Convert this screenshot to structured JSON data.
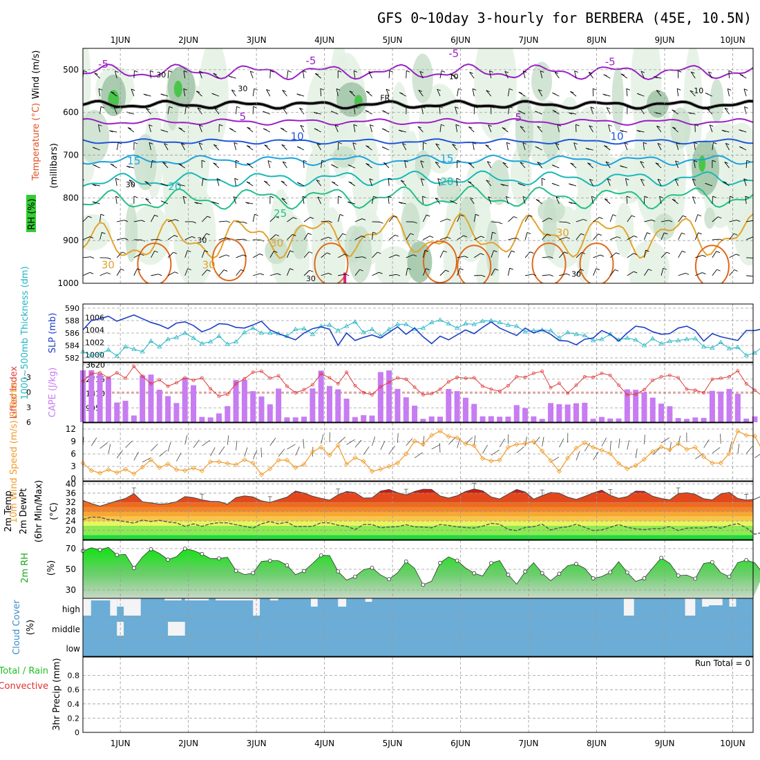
{
  "title": "GFS 0~10day 3-hourly for BERBERA (45E, 10.5N)",
  "colors": {
    "purple": "#9a1fc4",
    "black": "#000000",
    "blue": "#1e55d8",
    "lightblue": "#19a3e0",
    "teal": "#18b8b8",
    "green_line": "#22bf88",
    "orange": "#e2a32a",
    "dark_orange": "#e0681b",
    "slp": "#1c3fc4",
    "thickness": "#22b5c4",
    "li": "#e03a3a",
    "cape": "#c77cf2",
    "wind": "#f09a28",
    "rh2m": "#1bd61b",
    "cloud": "#6badd6"
  },
  "chart_data": {
    "type": "meteogram",
    "location": "BERBERA (45E, 10.5N)",
    "x_axis": {
      "ticks": [
        "1JUN",
        "2JUN",
        "3JUN",
        "4JUN",
        "5JUN",
        "6JUN",
        "7JUN",
        "8JUN",
        "9JUN",
        "10JUN"
      ],
      "day_range": [
        0.45,
        10.3
      ],
      "step_hours": 3
    },
    "panels": {
      "upper_air": {
        "ylabel": "(millibars)",
        "side_labels": [
          "Wind (m/s)",
          "Temperature (°C)",
          "RH (%)"
        ],
        "y_ticks": [
          "500",
          "600",
          "700",
          "800",
          "900",
          "1000"
        ],
        "ylim": [
          1000,
          450
        ],
        "rh_fill_levels": [
          30,
          50,
          70,
          90
        ],
        "freezing_label": "FR",
        "isotherm_labels": [
          "-5",
          "-5",
          "-5",
          "-5",
          "5",
          "5",
          "10",
          "10",
          "15",
          "15",
          "20",
          "20",
          "25",
          "30",
          "30",
          "30",
          "30"
        ],
        "rh_labels": [
          "30",
          "30",
          "30",
          "30",
          "30",
          "10",
          "10",
          "30"
        ],
        "isotherms": [
          {
            "temp": -5,
            "start": 505,
            "amp": 12
          },
          {
            "temp": 0,
            "start": 582,
            "amp": 6
          },
          {
            "temp": 5,
            "start": 622,
            "amp": 5
          },
          {
            "temp": 10,
            "start": 668,
            "amp": 4
          },
          {
            "temp": 15,
            "start": 712,
            "amp": 8
          },
          {
            "temp": 20,
            "start": 762,
            "amp": 12
          },
          {
            "temp": 25,
            "start": 810,
            "amp": 18
          },
          {
            "temp": 30,
            "start": 910,
            "amp": 35
          }
        ]
      },
      "slp_thickness": {
        "left_ylabel": "1000~500mb Thickness (dm)",
        "right_ylabel": "SLP (mb)",
        "thickness_ticks": [
          "582",
          "584",
          "586",
          "588",
          "590"
        ],
        "slp_ticks": [
          "1000",
          "1002",
          "1004",
          "1006"
        ],
        "thickness_range": [
          582,
          590
        ],
        "slp_range": [
          999.5,
          1007.5
        ],
        "slp": [
          1004.0,
          1005.5,
          1005.8,
          1006.2,
          1005.4,
          1005.9,
          1006.4,
          1005.8,
          1005.2,
          1004.8,
          1004.2,
          1005.1,
          1005.3,
          1004.7,
          1003.7,
          1004.2,
          1005.0,
          1004.9,
          1004.4,
          1004.3,
          1004.8,
          1005.4,
          1004.0,
          1003.4,
          1002.9,
          1002.4,
          1003.5,
          1004.2,
          1004.5,
          1004.1,
          1001.5,
          1003.5,
          1002.3,
          1002.8,
          1003.2,
          1002.7,
          1003.6,
          1004.5,
          1003.3,
          1004.3,
          1002.9,
          1001.8,
          1003.0,
          1002.4,
          1003.2,
          1004.0,
          1003.4,
          1004.4,
          1005.3,
          1004.3,
          1003.7,
          1003.1,
          1004.3,
          1003.5,
          1004.0,
          1003.3,
          1002.3,
          1002.2,
          1001.6,
          1002.5,
          1002.7,
          1003.9,
          1003.3,
          1002.2,
          1003.5,
          1004.6,
          1004.4,
          1003.7,
          1003.3,
          1003.4,
          1004.3,
          1004.6,
          1003.9,
          1002.2,
          1003.4,
          1002.9,
          1002.6,
          1002.3,
          1003.9,
          1003.9,
          1004.2
        ],
        "thickness": [
          583.0,
          582.4,
          582.6,
          583.3,
          582.3,
          583.8,
          583.4,
          583.0,
          584.7,
          583.8,
          585.0,
          585.3,
          586.0,
          585.2,
          584.3,
          584.6,
          585.5,
          584.2,
          584.6,
          586.1,
          586.8,
          586.0,
          586.0,
          585.9,
          585.5,
          586.6,
          586.7,
          585.8,
          587.1,
          587.3,
          586.4,
          587.1,
          587.8,
          586.1,
          586.6,
          585.5,
          586.6,
          587.4,
          587.4,
          586.6,
          586.8,
          587.7,
          588.1,
          587.5,
          586.8,
          587.5,
          587.4,
          587.9,
          588.0,
          587.7,
          587.3,
          587.1,
          586.2,
          586.4,
          586.5,
          586.4,
          585.2,
          586.1,
          585.8,
          585.6,
          584.8,
          585.0,
          585.8,
          584.9,
          585.2,
          584.9,
          584.0,
          585.1,
          584.3,
          584.7,
          584.8,
          585.0,
          585.1,
          583.8,
          583.6,
          584.5,
          583.5,
          583.7,
          582.4,
          582.8,
          583.9
        ]
      },
      "cape_li": {
        "left_ylabel": "Lifted Index",
        "right_ylabel": "CAPE (J/kg)",
        "li_ticks": [
          "-3",
          "0",
          "3",
          "6"
        ],
        "cape_ticks": [
          "905",
          "1810",
          "2715",
          "3620"
        ],
        "li_range": [
          -5.5,
          6
        ],
        "cape_max": 3620,
        "cape": [
          3276,
          3276,
          3052,
          2819,
          1238,
          1347,
          420,
          2949,
          3003,
          2049,
          1642,
          1208,
          2815,
          2331,
          328,
          298,
          552,
          1012,
          2658,
          2665,
          1956,
          1622,
          1126,
          2120,
          300,
          300,
          345,
          2129,
          3255,
          2281,
          2074,
          1484,
          321,
          443,
          416,
          3162,
          3265,
          2101,
          1568,
          1040,
          210,
          359,
          346,
          2093,
          1958,
          1543,
          1152,
          365,
          374,
          342,
          349,
          1075,
          883,
          365,
          208,
          1205,
          1131,
          1113,
          1191,
          1225,
          216,
          328,
          229,
          230,
          2070,
          2044,
          1880,
          1549,
          1168,
          1004,
          261,
          208,
          295,
          267,
          1977,
          1932,
          2099,
          1791,
          223,
          363,
          227
        ],
        "lifted_index": [
          -2.2,
          -3.7,
          -3.9,
          -2.9,
          -3.9,
          -2.8,
          -5.2,
          -3.2,
          -1.7,
          -2.5,
          -1.2,
          -1.9,
          -2.9,
          -2.4,
          -2.9,
          -0.7,
          0.8,
          0.4,
          -1.7,
          -2.7,
          -4.0,
          -4.2,
          -2.8,
          -3.3,
          -1.2,
          0.1,
          -0.5,
          -1.5,
          -3.7,
          -2.9,
          -1.7,
          -4.0,
          -1.3,
          0.1,
          0.5,
          -1.1,
          -2.0,
          -2.9,
          -2.6,
          -1.0,
          0.5,
          0.3,
          -0.6,
          -2.1,
          -3.0,
          -2.8,
          -2.9,
          -1.2,
          -0.6,
          -0.2,
          -1.3,
          -3.1,
          -3.0,
          -3.8,
          -4.2,
          -0.9,
          -1.8,
          0.2,
          -1.4,
          -3.1,
          -3.0,
          -3.8,
          -3.4,
          -1.4,
          0.5,
          0.4,
          -0.5,
          -2.4,
          -3.1,
          -3.4,
          -2.9,
          -0.6,
          -0.4,
          0.1,
          -2.6,
          -2.8,
          -3.1,
          -4.3,
          -1.7,
          -0.4,
          0.9
        ]
      },
      "wind10m": {
        "ylabel": "10m Wind Speed (m/s) & Barbs",
        "y_ticks": [
          "0",
          "3",
          "6",
          "9",
          "12"
        ],
        "ylim": [
          0,
          13.5
        ],
        "speed": [
          3.8,
          2.0,
          1.4,
          2.2,
          1.5,
          2.3,
          1.2,
          2.8,
          4.6,
          2.7,
          3.6,
          2.2,
          2.0,
          2.6,
          1.9,
          4.1,
          4.1,
          3.7,
          3.4,
          4.6,
          3.8,
          1.0,
          2.4,
          4.5,
          4.5,
          2.7,
          3.5,
          6.5,
          7.6,
          5.7,
          8.1,
          3.5,
          5.1,
          4.2,
          1.8,
          2.3,
          3.0,
          3.8,
          6.0,
          9.1,
          8.3,
          10.5,
          11.5,
          10.2,
          9.9,
          8.4,
          8.0,
          4.9,
          4.3,
          4.5,
          7.6,
          8.3,
          8.5,
          9.0,
          6.7,
          4.4,
          1.8,
          5.0,
          7.4,
          8.7,
          7.6,
          6.9,
          6.1,
          3.7,
          2.4,
          3.2,
          4.7,
          6.6,
          7.7,
          7.0,
          8.5,
          7.1,
          7.6,
          5.3,
          3.8,
          3.8,
          6.1,
          11.5,
          10.5,
          10.3,
          6.4
        ]
      },
      "temp2m": {
        "ylabel": "2m Temp 2m DewPt (6hr Min/Max) (°C)",
        "y_ticks": [
          "20",
          "24",
          "28",
          "32",
          "36",
          "40"
        ],
        "ylim": [
          16,
          41
        ],
        "temperature": [
          32.9,
          31.5,
          30.4,
          31.5,
          32.7,
          33.7,
          35.8,
          32.3,
          31.8,
          31.3,
          31.5,
          32.3,
          34.5,
          34.1,
          33.1,
          32.5,
          32.4,
          31.2,
          34.1,
          34.8,
          34.4,
          32.7,
          32.0,
          33.2,
          34.3,
          36.9,
          36.1,
          34.7,
          33.8,
          33.0,
          35.3,
          36.7,
          36.3,
          33.9,
          34.0,
          36.9,
          37.6,
          36.2,
          35.2,
          36.7,
          37.7,
          37.6,
          34.8,
          33.9,
          34.9,
          36.7,
          37.8,
          37.0,
          34.4,
          33.5,
          35.6,
          37.6,
          36.5,
          33.4,
          34.9,
          36.3,
          36.0,
          34.3,
          33.3,
          34.6,
          36.1,
          37.3,
          35.1,
          33.8,
          34.5,
          36.9,
          36.8,
          34.7,
          33.7,
          33.1,
          35.8,
          36.2,
          35.5,
          33.6,
          33.1,
          35.7,
          36.4,
          33.7,
          33.0,
          33.4,
          35.1
        ],
        "dewpoint": [
          24.7,
          25.7,
          25.6,
          24.6,
          24.4,
          23.7,
          23.1,
          24.4,
          23.8,
          24.3,
          23.6,
          23.2,
          21.7,
          22.8,
          21.7,
          22.8,
          23.3,
          23.2,
          22.4,
          21.7,
          21.0,
          22.8,
          23.8,
          22.8,
          23.5,
          21.6,
          21.7,
          21.7,
          23.3,
          23.2,
          22.2,
          21.8,
          20.3,
          22.5,
          22.5,
          21.1,
          21.4,
          21.6,
          22.4,
          21.5,
          21.4,
          21.1,
          22.5,
          22.1,
          21.5,
          21.2,
          21.0,
          21.8,
          23.0,
          22.6,
          20.4,
          19.9,
          21.2,
          21.6,
          22.6,
          20.1,
          21.1,
          21.5,
          22.6,
          21.3,
          19.9,
          20.2,
          21.3,
          22.5,
          21.3,
          20.6,
          20.3,
          20.7,
          20.7,
          21.6,
          19.9,
          20.9,
          21.1,
          20.9,
          21.6,
          20.9,
          22.1,
          22.9,
          21.1,
          18.3,
          19.2
        ]
      },
      "rh2m": {
        "ylabel": "2m RH (%)",
        "y_ticks": [
          "30",
          "50",
          "70"
        ],
        "ylim": [
          22,
          78
        ],
        "values": [
          67.7,
          70.8,
          68.8,
          71.2,
          63.9,
          64.4,
          51.2,
          61.9,
          69.4,
          65.3,
          59.3,
          62.2,
          69.9,
          68.1,
          64.8,
          60.3,
          60.5,
          61.7,
          48.6,
          44.9,
          46.4,
          57.7,
          58.3,
          58.3,
          53.9,
          44.8,
          48.3,
          55.7,
          63.5,
          63.3,
          48.0,
          39.7,
          42.9,
          49.7,
          51.5,
          44.6,
          40.5,
          46.7,
          57.6,
          50.9,
          35.1,
          38.5,
          56.2,
          62.1,
          58.4,
          51.3,
          46.2,
          43.6,
          56.0,
          58.4,
          44.8,
          35.7,
          47.8,
          56.5,
          46.3,
          38.9,
          45.7,
          53.4,
          55.2,
          50.9,
          41.3,
          43.0,
          47.1,
          57.4,
          47.0,
          38.3,
          41.3,
          51.3,
          61.1,
          55.8,
          44.0,
          44.4,
          41.0,
          55.7,
          56.9,
          46.8,
          42.9,
          56.5,
          58.9,
          56.2,
          45.7
        ]
      },
      "cloud_cover": {
        "ylabel": "Cloud Cover (%)",
        "levels": [
          "high",
          "middle",
          "low"
        ],
        "high_clear_segments": [
          [
            0.45,
            0.57,
            25
          ],
          [
            0.57,
            0.85,
            3
          ],
          [
            0.85,
            0.95,
            25
          ],
          [
            0.95,
            1.05,
            12
          ],
          [
            1.05,
            1.3,
            25
          ],
          [
            1.65,
            1.9,
            3
          ],
          [
            1.95,
            2.3,
            3
          ],
          [
            2.4,
            2.95,
            3
          ],
          [
            2.95,
            3.05,
            25
          ],
          [
            3.2,
            3.32,
            3
          ],
          [
            3.8,
            3.9,
            12
          ],
          [
            4.2,
            4.32,
            12
          ],
          [
            4.6,
            4.7,
            5
          ],
          [
            8.4,
            8.55,
            25
          ],
          [
            9.3,
            9.45,
            25
          ],
          [
            9.55,
            9.65,
            12
          ],
          [
            9.65,
            9.85,
            10
          ],
          [
            9.95,
            10.05,
            12
          ]
        ],
        "middle_clear_segments": [
          [
            0.95,
            1.05,
            20
          ],
          [
            1.7,
            1.95,
            20
          ]
        ]
      },
      "precip": {
        "ylabel": "3hr Precip (mm)",
        "side_labels": [
          "Total / Rain",
          "Convective"
        ],
        "y_ticks": [
          "0",
          "0.2",
          "0.4",
          "0.6",
          "0.8"
        ],
        "ylim": [
          0,
          1
        ],
        "run_total_label": "Run Total = 0",
        "values": []
      }
    }
  }
}
